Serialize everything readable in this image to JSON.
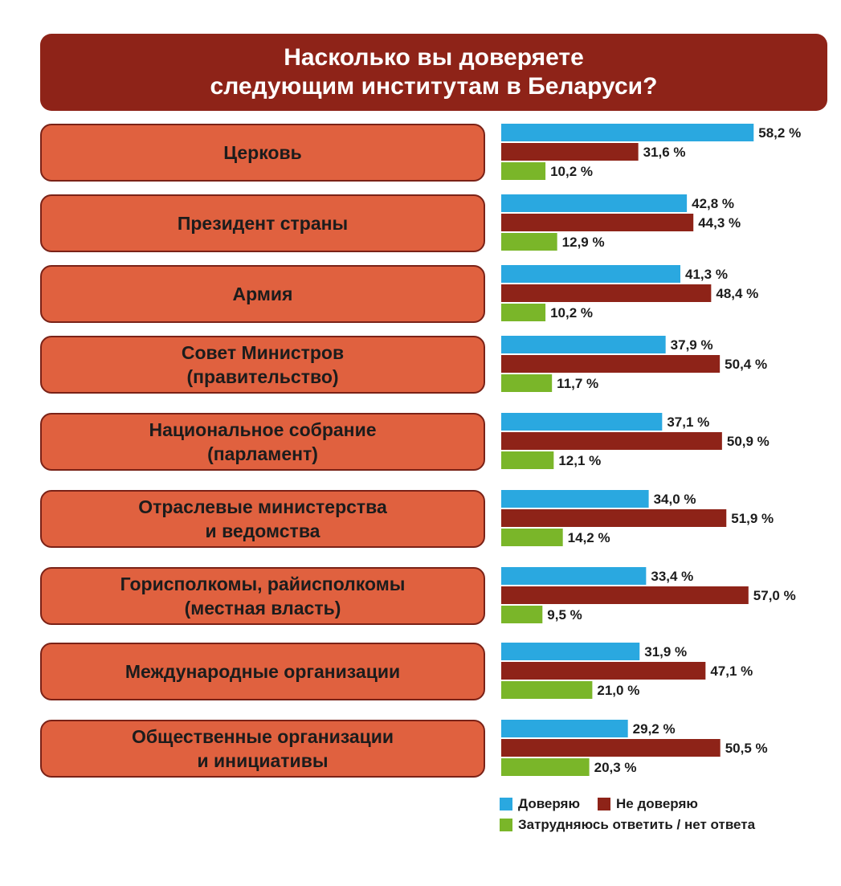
{
  "title": {
    "line1": "Насколько вы доверяете",
    "line2": "следующим институтам в Беларуси?"
  },
  "colors": {
    "title_bg": "#8e2318",
    "category_bg": "#e0613f",
    "trust": "#2aa8e0",
    "distrust": "#8e2318",
    "undecided": "#7ab629"
  },
  "legend": {
    "trust": "Доверяю",
    "distrust": "Не доверяю",
    "undecided": "Затрудняюсь ответить / нет ответа"
  },
  "categories": [
    {
      "line1": "Церковь",
      "line2": ""
    },
    {
      "line1": "Президент страны",
      "line2": ""
    },
    {
      "line1": "Армия",
      "line2": ""
    },
    {
      "line1": "Совет Министров",
      "line2": "(правительство)"
    },
    {
      "line1": "Национальное собрание",
      "line2": "(парламент)"
    },
    {
      "line1": "Отраслевые министерства",
      "line2": "и ведомства"
    },
    {
      "line1": "Горисполкомы, райисполкомы",
      "line2": "(местная власть)"
    },
    {
      "line1": "Международные организации",
      "line2": ""
    },
    {
      "line1": "Общественные организации",
      "line2": "и инициативы"
    }
  ],
  "chart_data": {
    "type": "bar",
    "orientation": "horizontal",
    "title": "Насколько вы доверяете следующим институтам в Беларуси?",
    "categories": [
      "Церковь",
      "Президент страны",
      "Армия",
      "Совет Министров (правительство)",
      "Национальное собрание (парламент)",
      "Отраслевые министерства и ведомства",
      "Горисполкомы, райисполкомы (местная власть)",
      "Международные организации",
      "Общественные организации и инициативы"
    ],
    "series": [
      {
        "name": "Доверяю",
        "values": [
          58.2,
          42.8,
          41.3,
          37.9,
          37.1,
          34.0,
          33.4,
          31.9,
          29.2
        ],
        "labels": [
          "58,2 %",
          "42,8 %",
          "41,3 %",
          "37,9 %",
          "37,1 %",
          "34,0 %",
          "33,4 %",
          "31,9 %",
          "29,2 %"
        ]
      },
      {
        "name": "Не доверяю",
        "values": [
          31.6,
          44.3,
          48.4,
          50.4,
          50.9,
          51.9,
          57.0,
          47.1,
          50.5
        ],
        "labels": [
          "31,6 %",
          "44,3 %",
          "48,4 %",
          "50,4 %",
          "50,9 %",
          "51,9 %",
          "57,0 %",
          "47,1 %",
          "50,5 %"
        ]
      },
      {
        "name": "Затрудняюсь ответить / нет ответа",
        "values": [
          10.2,
          12.9,
          10.2,
          11.7,
          12.1,
          14.2,
          9.5,
          21.0,
          20.3
        ],
        "labels": [
          "10,2 %",
          "12,9 %",
          "10,2 %",
          "11,7 %",
          "12,1 %",
          "14,2 %",
          "9,5 %",
          "21,0 %",
          "20,3 %"
        ]
      }
    ],
    "legend_position": "bottom-right",
    "grid": false
  }
}
